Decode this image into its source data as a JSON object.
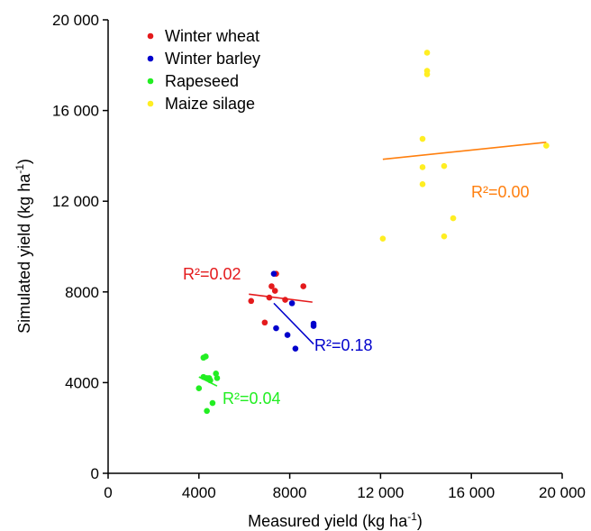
{
  "chart_data": {
    "type": "scatter",
    "title": "",
    "xlabel": "Measured yield (kg ha",
    "xlabel_sup": "-1",
    "xlabel_end": ")",
    "ylabel": "Simulated yield (kg ha",
    "ylabel_sup": "-1",
    "ylabel_end": ")",
    "xlim": [
      0,
      20000
    ],
    "ylim": [
      0,
      20000
    ],
    "xticks": [
      0,
      4000,
      8000,
      12000,
      16000,
      20000
    ],
    "yticks": [
      0,
      4000,
      8000,
      12000,
      16000,
      20000
    ],
    "xtick_labels": [
      "0",
      "4000",
      "8000",
      "12 000",
      "16 000",
      "20 000"
    ],
    "ytick_labels": [
      "0",
      "4000",
      "8000",
      "12 000",
      "16 000",
      "20 000"
    ],
    "grid": false,
    "legend_position": "top-left",
    "series": [
      {
        "name": "Winter wheat",
        "color": "#e41a1c",
        "points": [
          [
            7400,
            8800
          ],
          [
            7200,
            8250
          ],
          [
            8600,
            8250
          ],
          [
            7350,
            8050
          ],
          [
            7100,
            7750
          ],
          [
            6300,
            7600
          ],
          [
            7800,
            7650
          ],
          [
            6900,
            6650
          ]
        ],
        "fit": [
          [
            6200,
            7900
          ],
          [
            9000,
            7550
          ]
        ],
        "r2_label": "R²=0.02",
        "r2_value": 0.02
      },
      {
        "name": "Winter barley",
        "color": "#0000cc",
        "points": [
          [
            7300,
            8800
          ],
          [
            8100,
            7500
          ],
          [
            9050,
            6500
          ],
          [
            9050,
            6600
          ],
          [
            7400,
            6400
          ],
          [
            7900,
            6100
          ],
          [
            8250,
            5500
          ]
        ],
        "fit": [
          [
            7300,
            7500
          ],
          [
            9050,
            5700
          ]
        ],
        "r2_label": "R²=0.18",
        "r2_value": 0.18
      },
      {
        "name": "Rapeseed",
        "color": "#22ee22",
        "points": [
          [
            4200,
            5100
          ],
          [
            4300,
            5150
          ],
          [
            4200,
            4250
          ],
          [
            4350,
            4200
          ],
          [
            4500,
            4100
          ],
          [
            4450,
            4200
          ],
          [
            4750,
            4400
          ],
          [
            4800,
            4200
          ],
          [
            4000,
            3750
          ],
          [
            4600,
            3100
          ],
          [
            4350,
            2750
          ]
        ],
        "fit": [
          [
            4000,
            4250
          ],
          [
            4800,
            3850
          ]
        ],
        "r2_label": "R²=0.04",
        "r2_value": 0.04
      },
      {
        "name": "Maize silage",
        "color": "#ffee22",
        "points": [
          [
            14050,
            18550
          ],
          [
            14050,
            17750
          ],
          [
            14050,
            17600
          ],
          [
            13850,
            14750
          ],
          [
            19300,
            14450
          ],
          [
            14800,
            13550
          ],
          [
            13850,
            13500
          ],
          [
            13850,
            12750
          ],
          [
            15200,
            11250
          ],
          [
            12100,
            10350
          ],
          [
            14800,
            10450
          ]
        ],
        "fit": [
          [
            12100,
            13850
          ],
          [
            19300,
            14600
          ]
        ],
        "fit_color": "#ff7f0e",
        "r2_label": "R²=0.00",
        "r2_value": 0.0
      }
    ]
  }
}
